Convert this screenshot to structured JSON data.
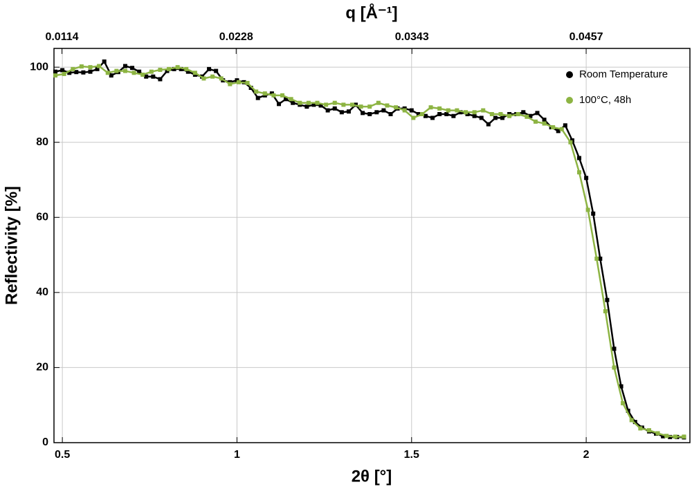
{
  "chart_data": {
    "type": "line",
    "title": "q [Å⁻¹]",
    "x_label": "2θ [°]",
    "y_label": "Reflectivity [%]",
    "xlim": [
      0.476,
      2.297
    ],
    "xticks": [
      0.5,
      1,
      1.5,
      2
    ],
    "x2lim": [
      0.01088,
      0.05249
    ],
    "x2ticks": [
      0.0114,
      0.0228,
      0.0343,
      0.0457
    ],
    "ylim": [
      0,
      105
    ],
    "yticks": [
      0,
      20,
      40,
      60,
      80,
      100
    ],
    "grid": true,
    "legend": "upper right",
    "series": [
      {
        "name": "Room Temperature",
        "color": "#000000",
        "x": [
          0.48,
          0.5,
          0.52,
          0.54,
          0.56,
          0.58,
          0.6,
          0.62,
          0.64,
          0.66,
          0.68,
          0.7,
          0.72,
          0.74,
          0.76,
          0.78,
          0.8,
          0.82,
          0.84,
          0.86,
          0.88,
          0.9,
          0.92,
          0.94,
          0.96,
          0.98,
          1,
          1.02,
          1.04,
          1.06,
          1.08,
          1.1,
          1.12,
          1.14,
          1.16,
          1.18,
          1.2,
          1.22,
          1.24,
          1.26,
          1.28,
          1.3,
          1.32,
          1.34,
          1.36,
          1.38,
          1.4,
          1.42,
          1.44,
          1.46,
          1.48,
          1.5,
          1.52,
          1.54,
          1.56,
          1.58,
          1.6,
          1.62,
          1.64,
          1.66,
          1.68,
          1.7,
          1.72,
          1.74,
          1.76,
          1.78,
          1.8,
          1.82,
          1.84,
          1.86,
          1.88,
          1.9,
          1.92,
          1.94,
          1.96,
          1.98,
          2,
          2.02,
          2.04,
          2.06,
          2.08,
          2.1,
          2.12,
          2.14,
          2.16,
          2.18,
          2.2,
          2.22,
          2.24,
          2.26,
          2.28
        ],
        "values": [
          98.8,
          99.2,
          98.5,
          98.7,
          98.6,
          98.8,
          99.5,
          101.5,
          97.8,
          98.7,
          100.3,
          99.8,
          98.8,
          97.5,
          97.5,
          96.8,
          99,
          99.5,
          99.5,
          98.8,
          98,
          97.5,
          99.5,
          99,
          96.5,
          96,
          96.5,
          96,
          94.5,
          91.8,
          92.5,
          93,
          90.2,
          91.5,
          90.5,
          90,
          89.5,
          90,
          89.8,
          88.5,
          89,
          88,
          88.2,
          90,
          87.8,
          87.5,
          88,
          88.5,
          87.5,
          89,
          89,
          88.5,
          87.5,
          87,
          86.5,
          87.5,
          87.5,
          87,
          88,
          87.5,
          87,
          86.5,
          84.8,
          86.5,
          86.5,
          87.5,
          87.5,
          88,
          87,
          87.8,
          86,
          84,
          83,
          84.5,
          80.5,
          75.8,
          70.5,
          61,
          49,
          38,
          25,
          15,
          8.5,
          5.5,
          4,
          3,
          2.4,
          1.7,
          1.5,
          1.5,
          1.4
        ]
      },
      {
        "name": "100°C, 48h",
        "color": "#8db443",
        "x": [
          0.48,
          0.505,
          0.53,
          0.555,
          0.58,
          0.605,
          0.63,
          0.655,
          0.68,
          0.705,
          0.73,
          0.755,
          0.78,
          0.805,
          0.83,
          0.855,
          0.88,
          0.905,
          0.93,
          0.955,
          0.98,
          1.005,
          1.03,
          1.055,
          1.08,
          1.105,
          1.13,
          1.155,
          1.18,
          1.205,
          1.23,
          1.255,
          1.28,
          1.305,
          1.33,
          1.355,
          1.38,
          1.405,
          1.43,
          1.455,
          1.48,
          1.505,
          1.53,
          1.555,
          1.58,
          1.605,
          1.63,
          1.655,
          1.68,
          1.705,
          1.73,
          1.755,
          1.78,
          1.805,
          1.83,
          1.855,
          1.88,
          1.905,
          1.93,
          1.955,
          1.98,
          2.005,
          2.03,
          2.055,
          2.08,
          2.105,
          2.13,
          2.155,
          2.18,
          2.205,
          2.23,
          2.255,
          2.28
        ],
        "values": [
          97.8,
          98.2,
          99.5,
          100.2,
          100,
          100.3,
          98.5,
          99,
          99,
          98.5,
          98,
          98.8,
          99.3,
          99.5,
          100,
          99.5,
          98.5,
          97,
          97.5,
          97,
          95.5,
          96,
          95.8,
          93.5,
          93,
          92.5,
          92.5,
          91.5,
          90.5,
          90.5,
          90.5,
          90,
          90.5,
          90,
          90,
          89.5,
          89.5,
          90.5,
          89.8,
          89.3,
          88.5,
          86.5,
          87.5,
          89.3,
          89,
          88.5,
          88.5,
          88,
          88,
          88.5,
          87.5,
          87.5,
          87,
          87.5,
          86.8,
          85.5,
          85,
          84,
          83.5,
          80,
          72,
          62,
          49,
          35,
          20,
          10.5,
          6,
          3.8,
          3.3,
          2.5,
          1.8,
          1.6,
          1.6
        ]
      }
    ]
  }
}
